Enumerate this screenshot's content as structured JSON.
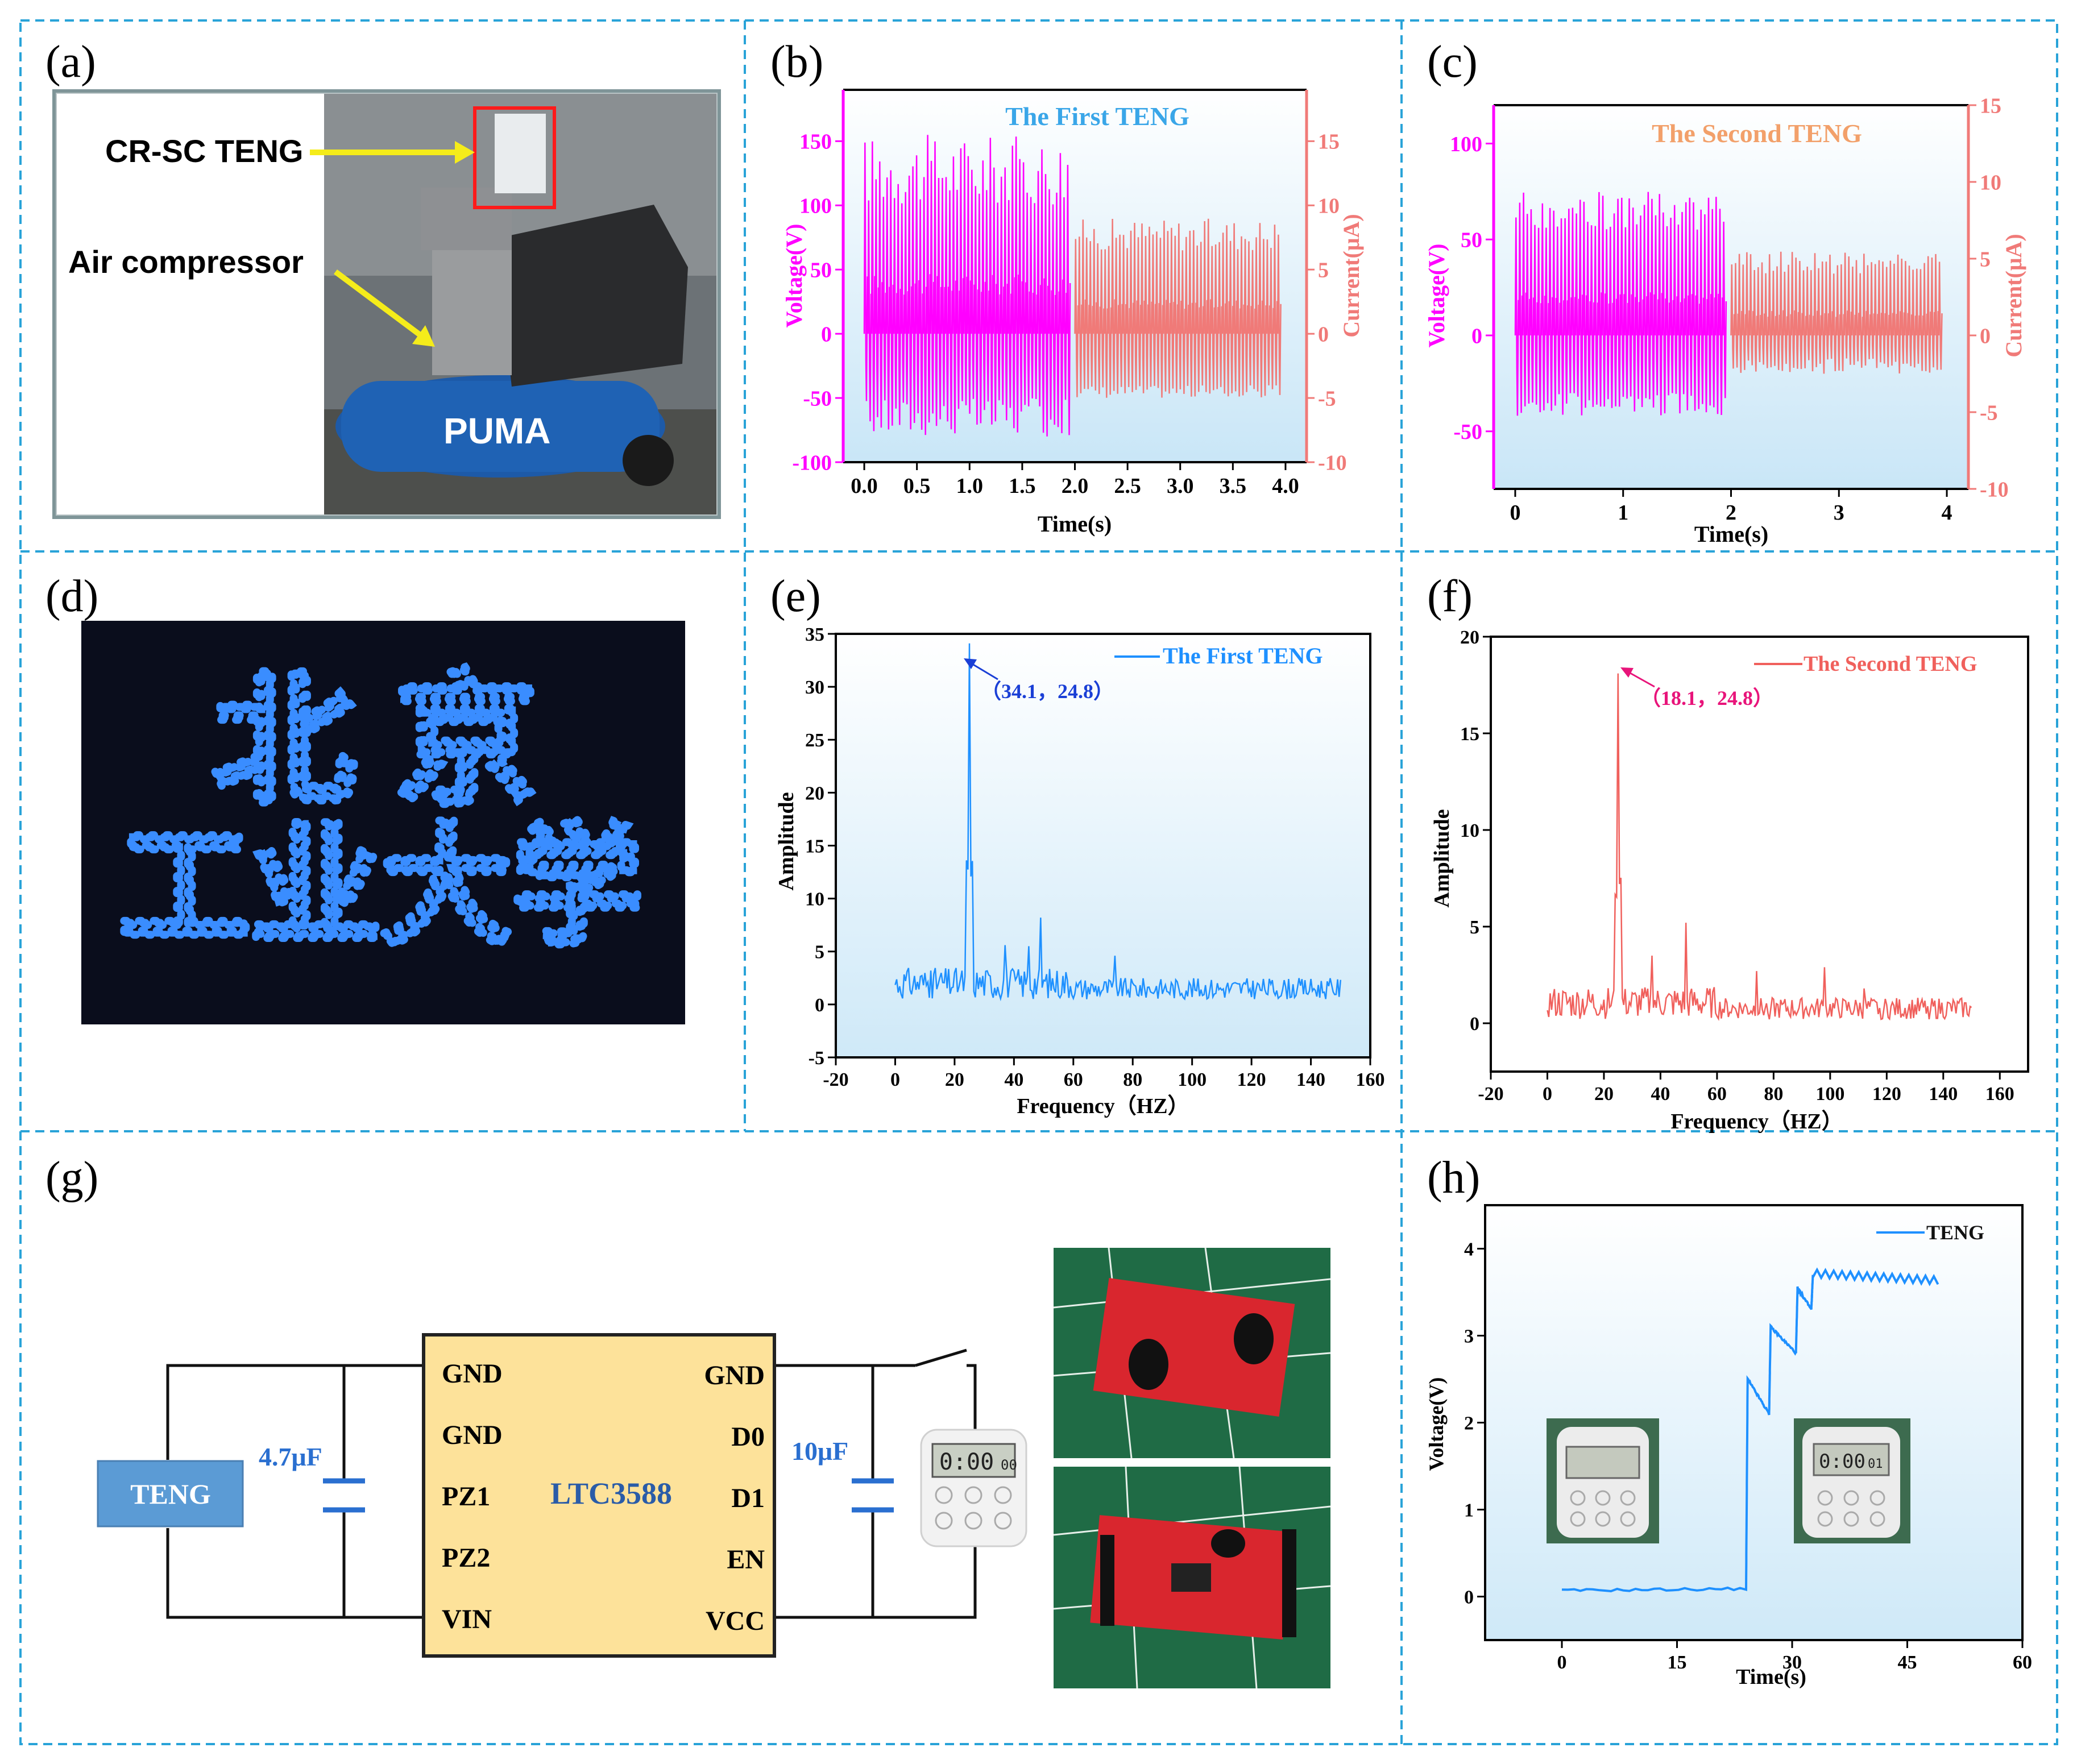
{
  "panels": {
    "a": {
      "letter": "(a)",
      "label_teng": "CR-SC TENG",
      "label_compressor": "Air compressor",
      "brand": "PUMA"
    },
    "b": {
      "letter": "(b)"
    },
    "c": {
      "letter": "(c)"
    },
    "d": {
      "letter": "(d)",
      "sign_line1": "北 京",
      "sign_line2": "工业大学"
    },
    "e": {
      "letter": "(e)"
    },
    "f": {
      "letter": "(f)"
    },
    "g": {
      "letter": "(g)",
      "teng_label": "TENG",
      "cap1": "4.7μF",
      "cap2": "10μF",
      "chip_name": "LTC3588",
      "pins_left": [
        "GND",
        "GND",
        "PZ1",
        "PZ2",
        "VIN"
      ],
      "pins_right": [
        "GND",
        "D0",
        "D1",
        "EN",
        "VCC"
      ],
      "timer_display": "0:00",
      "timer_small": "00"
    },
    "h": {
      "letter": "(h)",
      "timer1_display": "",
      "timer2_display": "0:00",
      "timer2_small": "01"
    }
  },
  "colors": {
    "divider": "#29a3d8",
    "magenta": "#ff00ff",
    "salmon": "#f07a78",
    "blue_series": "#1e90ff",
    "red_series": "#f0605c",
    "annot_blue": "#1a3fd6",
    "annot_pink": "#e8147a",
    "first_title": "#3aa6e8",
    "second_title": "#f2a06a"
  },
  "chart_data": [
    {
      "panel": "b",
      "type": "line",
      "title": "The  First TENG",
      "xlabel": "Time(s)",
      "ylabel": "Voltage(V)",
      "y2label": "Current(μA)",
      "xlim": [
        -0.2,
        4.2
      ],
      "ylim": [
        -100,
        190
      ],
      "y2lim": [
        -10,
        19
      ],
      "xticks": [
        "0.0",
        "0.5",
        "1.0",
        "1.5",
        "2.0",
        "2.5",
        "3.0",
        "3.5",
        "4.0"
      ],
      "yticks": [
        "-100",
        "-50",
        "0",
        "50",
        "100",
        "150"
      ],
      "y2ticks": [
        "-10",
        "-5",
        "0",
        "5",
        "10",
        "15"
      ],
      "series": [
        {
          "axis": "left",
          "x_range": [
            0,
            1.95
          ],
          "peak_high": [
            100,
            155
          ],
          "peak_low": [
            -80,
            -50
          ],
          "period": 0.035
        },
        {
          "axis": "right",
          "x_range": [
            2.0,
            3.95
          ],
          "peak_high": [
            6.5,
            9.0
          ],
          "peak_low": [
            -5,
            -4
          ],
          "period": 0.035
        }
      ]
    },
    {
      "panel": "c",
      "type": "line",
      "title": "The  Second TENG",
      "xlabel": "Time(s)",
      "ylabel": "Voltage(V)",
      "y2label": "Current(μA)",
      "xlim": [
        -0.2,
        4.2
      ],
      "ylim": [
        -80,
        120
      ],
      "y2lim": [
        -10,
        15
      ],
      "xticks": [
        "0",
        "1",
        "2",
        "3",
        "4"
      ],
      "yticks": [
        "-50",
        "0",
        "50",
        "100"
      ],
      "y2ticks": [
        "-10",
        "-5",
        "0",
        "5",
        "10",
        "15"
      ],
      "series": [
        {
          "axis": "left",
          "x_range": [
            0,
            1.95
          ],
          "peak_high": [
            55,
            75
          ],
          "peak_low": [
            -42,
            -30
          ],
          "period": 0.035
        },
        {
          "axis": "right",
          "x_range": [
            2.0,
            3.95
          ],
          "peak_high": [
            4.0,
            5.5
          ],
          "peak_low": [
            -2.5,
            -1.5
          ],
          "period": 0.035
        }
      ]
    },
    {
      "panel": "e",
      "type": "line",
      "legend": "The First TENG",
      "xlabel": "Frequency（HZ）",
      "ylabel": "Amplitude",
      "xlim": [
        -20,
        160
      ],
      "ylim": [
        -5,
        35
      ],
      "xticks": [
        "-20",
        "0",
        "20",
        "40",
        "60",
        "80",
        "100",
        "120",
        "140",
        "160"
      ],
      "yticks": [
        "-5",
        "0",
        "5",
        "10",
        "15",
        "20",
        "25",
        "30",
        "35"
      ],
      "annotation": "（34.1，24.8）",
      "peak": {
        "x": 24.8,
        "y": 34.1
      },
      "secondary_peaks": [
        [
          49,
          8.2
        ],
        [
          37,
          5.6
        ],
        [
          74,
          4.6
        ],
        [
          45,
          5.5
        ],
        [
          12,
          3.2
        ]
      ],
      "x_range": [
        0,
        150
      ],
      "baseline": [
        0.5,
        3.0
      ]
    },
    {
      "panel": "f",
      "type": "line",
      "legend": "The Second TENG",
      "xlabel": "Frequency（HZ）",
      "ylabel": "Amplitude",
      "xlim": [
        -20,
        170
      ],
      "ylim": [
        -2.5,
        20
      ],
      "xticks": [
        "-20",
        "0",
        "20",
        "40",
        "60",
        "80",
        "100",
        "120",
        "140",
        "160"
      ],
      "yticks": [
        "0",
        "5",
        "10",
        "15",
        "20"
      ],
      "annotation": "（18.1，24.8）",
      "peak": {
        "x": 24.8,
        "y": 18.1
      },
      "secondary_peaks": [
        [
          49,
          5.2
        ],
        [
          37,
          3.5
        ],
        [
          74,
          2.7
        ],
        [
          98,
          2.9
        ],
        [
          112,
          1.8
        ]
      ],
      "x_range": [
        0,
        150
      ],
      "baseline": [
        0.2,
        1.6
      ]
    },
    {
      "panel": "h",
      "type": "line",
      "legend": "TENG",
      "xlabel": "Time(s)",
      "ylabel": "Voltage(V)",
      "xlim": [
        -10,
        60
      ],
      "ylim": [
        -0.5,
        4.5
      ],
      "xticks": [
        "0",
        "15",
        "30",
        "45",
        "60"
      ],
      "yticks": [
        "0",
        "1",
        "2",
        "3",
        "4"
      ],
      "steps": [
        [
          0,
          0.07
        ],
        [
          24,
          0.09
        ],
        [
          24.2,
          2.5
        ],
        [
          27,
          2.1
        ],
        [
          27.2,
          3.1
        ],
        [
          30.5,
          2.8
        ],
        [
          30.7,
          3.55
        ],
        [
          32.5,
          3.3
        ],
        [
          32.7,
          3.7
        ],
        [
          49,
          3.62
        ]
      ]
    }
  ]
}
